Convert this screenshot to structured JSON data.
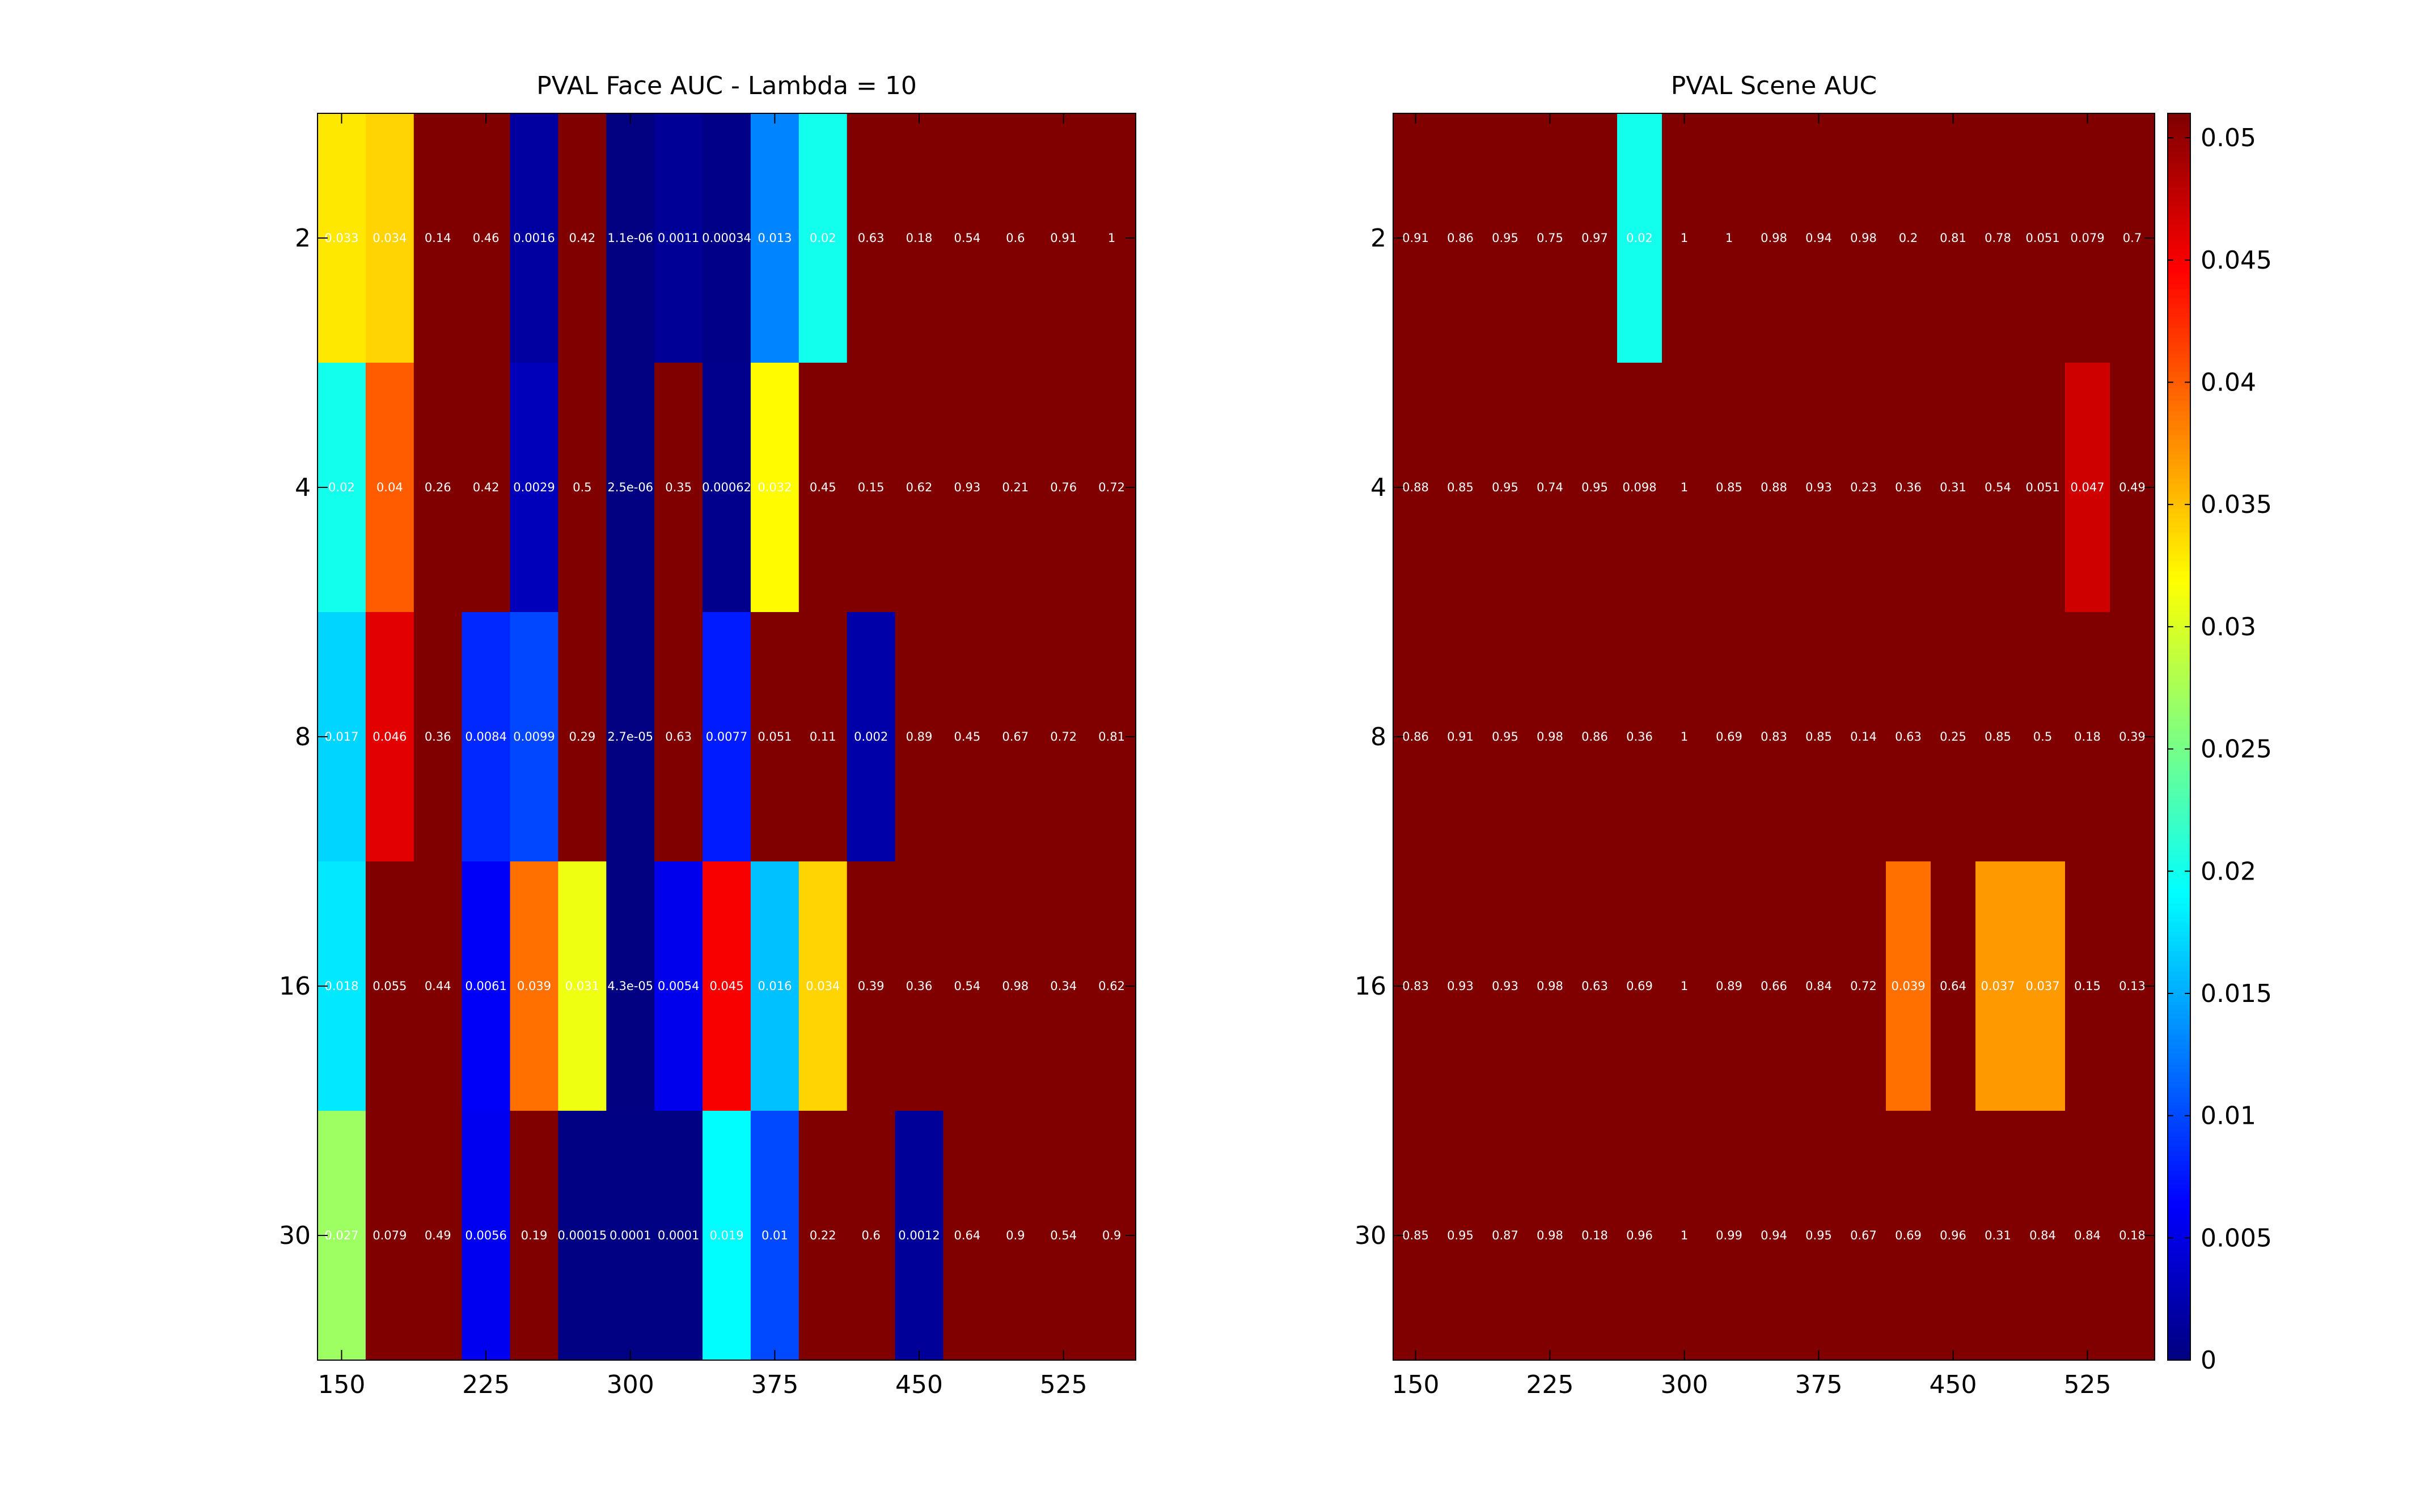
{
  "figure": {
    "background": "#ffffff",
    "colormap": "jet"
  },
  "chart_data": [
    {
      "type": "heatmap",
      "title": "PVAL Face AUC - Lambda = 10",
      "xlabel": "",
      "ylabel": "",
      "x": [
        150,
        175,
        200,
        225,
        250,
        275,
        300,
        325,
        350,
        375,
        400,
        425,
        450,
        475,
        500,
        525,
        550
      ],
      "y": [
        2,
        4,
        8,
        16,
        30
      ],
      "x_ticks": [
        "150",
        "225",
        "300",
        "375",
        "450",
        "525"
      ],
      "y_ticks": [
        "2",
        "4",
        "8",
        "16",
        "30"
      ],
      "clim": [
        0,
        0.051
      ],
      "values": [
        [
          0.033,
          0.034,
          0.14,
          0.46,
          0.0016,
          0.42,
          1.1e-06,
          0.0011,
          0.00034,
          0.013,
          0.02,
          0.63,
          0.18,
          0.54,
          0.6,
          0.91,
          1
        ],
        [
          0.02,
          0.04,
          0.26,
          0.42,
          0.0029,
          0.5,
          2.5e-06,
          0.35,
          0.00062,
          0.032,
          0.45,
          0.15,
          0.62,
          0.93,
          0.21,
          0.76,
          0.72
        ],
        [
          0.017,
          0.046,
          0.36,
          0.0084,
          0.0099,
          0.29,
          2.7e-05,
          0.63,
          0.0077,
          0.051,
          0.11,
          0.002,
          0.89,
          0.45,
          0.67,
          0.72,
          0.81
        ],
        [
          0.018,
          0.055,
          0.44,
          0.0061,
          0.039,
          0.031,
          4.3e-05,
          0.0054,
          0.045,
          0.016,
          0.034,
          0.39,
          0.36,
          0.54,
          0.98,
          0.34,
          0.62
        ],
        [
          0.027,
          0.079,
          0.49,
          0.0056,
          0.19,
          0.00015,
          0.0001,
          0.0001,
          0.019,
          0.01,
          0.22,
          0.6,
          0.0012,
          0.64,
          0.9,
          0.54,
          0.9
        ]
      ],
      "labels": [
        [
          "0.033",
          "0.034",
          "0.14",
          "0.46",
          "0.0016",
          "0.42",
          "1.1e-06",
          "0.0011",
          "0.00034",
          "0.013",
          "0.02",
          "0.63",
          "0.18",
          "0.54",
          "0.6",
          "0.91",
          "1"
        ],
        [
          "0.02",
          "0.04",
          "0.26",
          "0.42",
          "0.0029",
          "0.5",
          "2.5e-06",
          "0.35",
          "0.00062",
          "0.032",
          "0.45",
          "0.15",
          "0.62",
          "0.93",
          "0.21",
          "0.76",
          "0.72"
        ],
        [
          "0.017",
          "0.046",
          "0.36",
          "0.0084",
          "0.0099",
          "0.29",
          "2.7e-05",
          "0.63",
          "0.0077",
          "0.051",
          "0.11",
          "0.002",
          "0.89",
          "0.45",
          "0.67",
          "0.72",
          "0.81"
        ],
        [
          "0.018",
          "0.055",
          "0.44",
          "0.0061",
          "0.039",
          "0.031",
          "4.3e-05",
          "0.0054",
          "0.045",
          "0.016",
          "0.034",
          "0.39",
          "0.36",
          "0.54",
          "0.98",
          "0.34",
          "0.62"
        ],
        [
          "0.027",
          "0.079",
          "0.49",
          "0.0056",
          "0.19",
          "0.00015",
          "0.0001",
          "0.0001",
          "0.019",
          "0.01",
          "0.22",
          "0.6",
          "0.0012",
          "0.64",
          "0.9",
          "0.54",
          "0.9"
        ]
      ]
    },
    {
      "type": "heatmap",
      "title": "PVAL Scene AUC",
      "xlabel": "",
      "ylabel": "",
      "x": [
        150,
        175,
        200,
        225,
        250,
        275,
        300,
        325,
        350,
        375,
        400,
        425,
        450,
        475,
        500,
        525,
        550
      ],
      "y": [
        2,
        4,
        8,
        16,
        30
      ],
      "x_ticks": [
        "150",
        "225",
        "300",
        "375",
        "450",
        "525"
      ],
      "y_ticks": [
        "2",
        "4",
        "8",
        "16",
        "30"
      ],
      "clim": [
        0,
        0.051
      ],
      "values": [
        [
          0.91,
          0.86,
          0.95,
          0.75,
          0.97,
          0.02,
          1,
          1,
          0.98,
          0.94,
          0.98,
          0.2,
          0.81,
          0.78,
          0.051,
          0.079,
          0.7
        ],
        [
          0.88,
          0.85,
          0.95,
          0.74,
          0.95,
          0.098,
          1,
          0.85,
          0.88,
          0.93,
          0.23,
          0.36,
          0.31,
          0.54,
          0.051,
          0.047,
          0.49
        ],
        [
          0.86,
          0.91,
          0.95,
          0.98,
          0.86,
          0.36,
          1,
          0.69,
          0.83,
          0.85,
          0.14,
          0.63,
          0.25,
          0.85,
          0.5,
          0.18,
          0.39
        ],
        [
          0.83,
          0.93,
          0.93,
          0.98,
          0.63,
          0.69,
          1,
          0.89,
          0.66,
          0.84,
          0.72,
          0.039,
          0.64,
          0.037,
          0.037,
          0.15,
          0.13
        ],
        [
          0.85,
          0.95,
          0.87,
          0.98,
          0.18,
          0.96,
          1,
          0.99,
          0.94,
          0.95,
          0.67,
          0.69,
          0.96,
          0.31,
          0.84,
          0.84,
          0.18
        ]
      ],
      "labels": [
        [
          "0.91",
          "0.86",
          "0.95",
          "0.75",
          "0.97",
          "0.02",
          "1",
          "1",
          "0.98",
          "0.94",
          "0.98",
          "0.2",
          "0.81",
          "0.78",
          "0.051",
          "0.079",
          "0.7"
        ],
        [
          "0.88",
          "0.85",
          "0.95",
          "0.74",
          "0.95",
          "0.098",
          "1",
          "0.85",
          "0.88",
          "0.93",
          "0.23",
          "0.36",
          "0.31",
          "0.54",
          "0.051",
          "0.047",
          "0.49"
        ],
        [
          "0.86",
          "0.91",
          "0.95",
          "0.98",
          "0.86",
          "0.36",
          "1",
          "0.69",
          "0.83",
          "0.85",
          "0.14",
          "0.63",
          "0.25",
          "0.85",
          "0.5",
          "0.18",
          "0.39"
        ],
        [
          "0.83",
          "0.93",
          "0.93",
          "0.98",
          "0.63",
          "0.69",
          "1",
          "0.89",
          "0.66",
          "0.84",
          "0.72",
          "0.039",
          "0.64",
          "0.037",
          "0.037",
          "0.15",
          "0.13"
        ],
        [
          "0.85",
          "0.95",
          "0.87",
          "0.98",
          "0.18",
          "0.96",
          "1",
          "0.99",
          "0.94",
          "0.95",
          "0.67",
          "0.69",
          "0.96",
          "0.31",
          "0.84",
          "0.84",
          "0.18"
        ]
      ]
    }
  ],
  "colorbar": {
    "range": [
      0,
      0.051
    ],
    "ticks": [
      "0",
      "0.005",
      "0.01",
      "0.015",
      "0.02",
      "0.025",
      "0.03",
      "0.035",
      "0.04",
      "0.045",
      "0.05"
    ]
  }
}
